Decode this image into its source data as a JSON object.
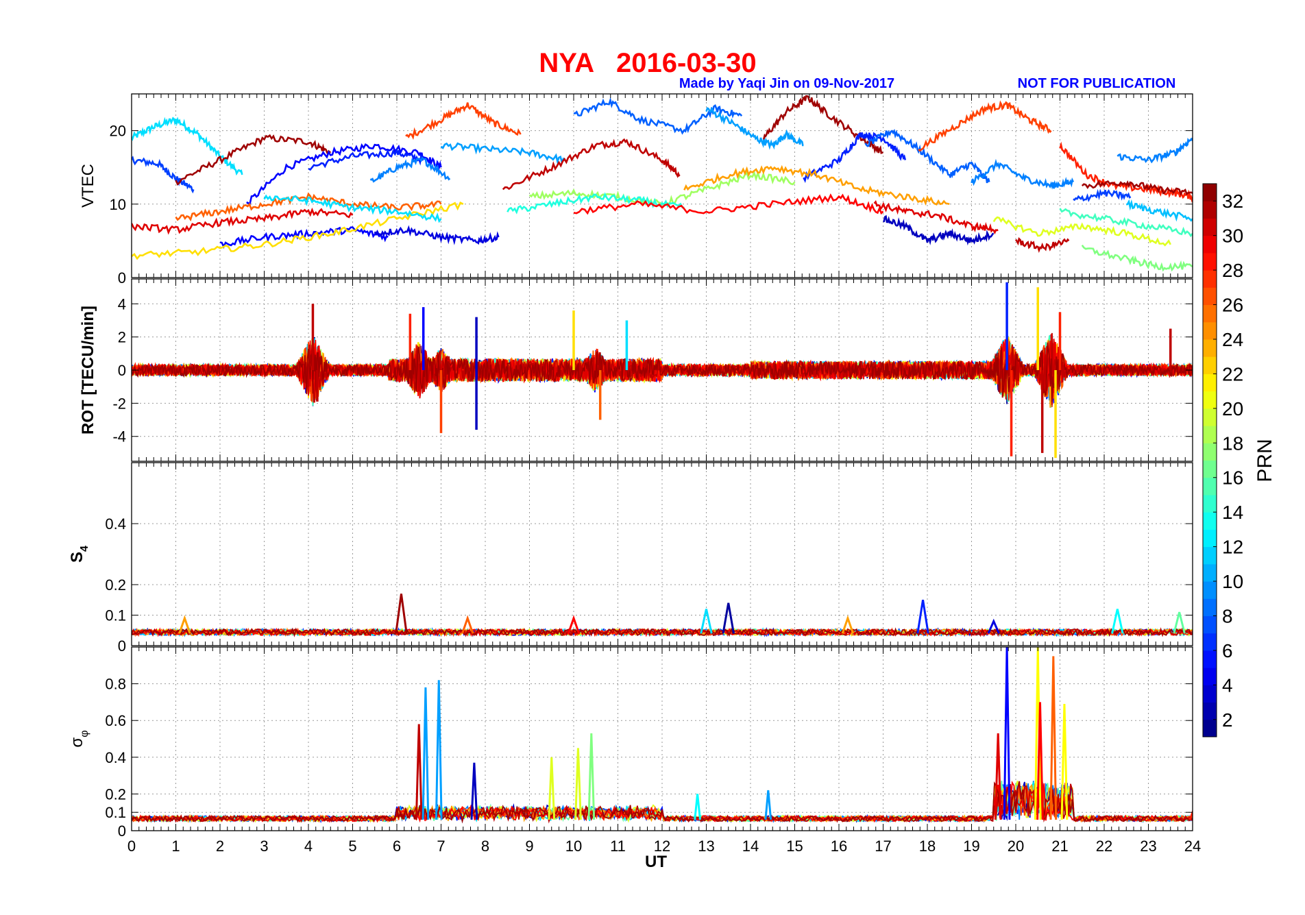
{
  "title": "NYA   2016-03-30",
  "credit": "Made by Yaqi Jin on 09-Nov-2017",
  "notice": "NOT FOR PUBLICATION",
  "xlabel": "UT",
  "colors": {
    "title": "#ff0000",
    "credit": "#0000ff"
  },
  "chart_data": [
    {
      "type": "line",
      "panel": "vtec",
      "ylabel": "VTEC",
      "xlim": [
        0,
        24
      ],
      "ylim": [
        0,
        25
      ],
      "yticks": [
        0,
        10,
        20
      ],
      "grid": true,
      "series": [
        {
          "prn": 12,
          "x": [
            0,
            0.5,
            1.0,
            1.5,
            2.0,
            2.5
          ],
          "y": [
            19,
            20.5,
            21.5,
            19.5,
            16.5,
            14
          ]
        },
        {
          "prn": 7,
          "x": [
            0,
            0.6,
            1.0,
            1.4
          ],
          "y": [
            16,
            15.5,
            13.5,
            12
          ]
        },
        {
          "prn": 32,
          "x": [
            1.0,
            2.0,
            3.0,
            4.0,
            4.5
          ],
          "y": [
            13,
            16,
            19,
            18.5,
            17
          ]
        },
        {
          "prn": 5,
          "x": [
            2.6,
            3.5,
            4.5,
            5.5,
            6.5,
            7.0
          ],
          "y": [
            10,
            15,
            17,
            18,
            17,
            15
          ]
        },
        {
          "prn": 6,
          "x": [
            4.0,
            5.0,
            6.0,
            6.6
          ],
          "y": [
            15,
            16.5,
            17,
            16
          ]
        },
        {
          "prn": 27,
          "x": [
            6.2,
            7.0,
            7.6,
            8.2,
            8.8
          ],
          "y": [
            19,
            21.5,
            23.5,
            21,
            19.5
          ]
        },
        {
          "prn": 10,
          "x": [
            7.0,
            8.0,
            9.0,
            9.8
          ],
          "y": [
            18,
            17.5,
            17,
            16
          ]
        },
        {
          "prn": 9,
          "x": [
            5.4,
            6.0,
            6.6,
            7.2
          ],
          "y": [
            13,
            15,
            16,
            13.5
          ]
        },
        {
          "prn": 31,
          "x": [
            8.4,
            9.5,
            10.5,
            11.2,
            12.0,
            12.4
          ],
          "y": [
            12,
            15,
            18,
            18.5,
            16,
            14
          ]
        },
        {
          "prn": 8,
          "x": [
            10.0,
            10.8,
            11.5,
            12.5,
            13.2,
            13.8
          ],
          "y": [
            22,
            24,
            21.5,
            20,
            23,
            22
          ]
        },
        {
          "prn": 10,
          "x": [
            13.0,
            13.6,
            14.1,
            14.5,
            14.8,
            15.2
          ],
          "y": [
            23,
            21,
            19,
            18,
            19.5,
            18
          ]
        },
        {
          "prn": 32,
          "x": [
            14.3,
            14.8,
            15.3,
            15.8,
            16.5,
            17.0
          ],
          "y": [
            19,
            22.5,
            24.5,
            22,
            19,
            17
          ]
        },
        {
          "prn": 6,
          "x": [
            15.2,
            16.0,
            16.5,
            17.0,
            17.5
          ],
          "y": [
            13.5,
            16,
            19.5,
            19,
            16
          ]
        },
        {
          "prn": 8,
          "x": [
            16.6,
            17.2,
            17.8,
            18.5,
            19.0,
            19.4
          ],
          "y": [
            18,
            20,
            17.5,
            14,
            15.5,
            13
          ]
        },
        {
          "prn": 9,
          "x": [
            19.0,
            19.6,
            20.2,
            20.8,
            21.3
          ],
          "y": [
            13,
            15.5,
            13.5,
            12.5,
            13
          ]
        },
        {
          "prn": 27,
          "x": [
            17.8,
            18.6,
            19.3,
            19.8,
            20.3,
            20.8
          ],
          "y": [
            17.5,
            20.5,
            23,
            23.5,
            21.5,
            20
          ]
        },
        {
          "prn": 28,
          "x": [
            21.0,
            21.6,
            22.2,
            23.0,
            23.6,
            24
          ],
          "y": [
            18,
            14,
            12.5,
            12,
            11.5,
            11
          ]
        },
        {
          "prn": 32,
          "x": [
            21.5,
            22.5,
            23.2,
            24
          ],
          "y": [
            12.5,
            13,
            12,
            11.5
          ]
        },
        {
          "prn": 9,
          "x": [
            22.3,
            23.0,
            23.6,
            24
          ],
          "y": [
            16.5,
            16,
            17,
            19
          ]
        },
        {
          "prn": 5,
          "x": [
            2.0,
            3.0,
            4.0,
            5.0,
            5.8
          ],
          "y": [
            4.5,
            5.5,
            6,
            6.5,
            5.5
          ]
        },
        {
          "prn": 4,
          "x": [
            5.5,
            6.2,
            7.0,
            7.8,
            8.3
          ],
          "y": [
            6,
            6.5,
            5.5,
            5,
            5.5
          ]
        },
        {
          "prn": 22,
          "x": [
            0,
            1.5,
            3.0,
            4.5,
            6.0,
            7.5
          ],
          "y": [
            3,
            3.5,
            4.5,
            6,
            8,
            10
          ]
        },
        {
          "prn": 18,
          "x": [
            9.0,
            10.0,
            11.0,
            12.0,
            13.0,
            14.0,
            15.0
          ],
          "y": [
            11,
            11.5,
            11,
            10,
            12,
            14,
            13
          ]
        },
        {
          "prn": 14,
          "x": [
            8.5,
            9.5,
            10.5,
            11.5,
            12.5
          ],
          "y": [
            9,
            10,
            11,
            10.5,
            9.5
          ]
        },
        {
          "prn": 26,
          "x": [
            1.0,
            2.0,
            3.0,
            4.0,
            5.0,
            6.0,
            7.0
          ],
          "y": [
            8,
            9,
            10,
            11,
            10,
            9.5,
            10
          ]
        },
        {
          "prn": 12,
          "x": [
            3.0,
            4.0,
            5.0,
            6.0,
            7.0
          ],
          "y": [
            11,
            10.5,
            9.5,
            9,
            8
          ]
        },
        {
          "prn": 30,
          "x": [
            0,
            1.0,
            2.0,
            3.0,
            4.0,
            5.0
          ],
          "y": [
            7,
            6.5,
            7.5,
            8,
            9,
            8.5
          ]
        },
        {
          "prn": 24,
          "x": [
            12.5,
            13.5,
            14.5,
            15.5,
            16.5,
            17.5,
            18.5
          ],
          "y": [
            12,
            14,
            15,
            14,
            12,
            11,
            10
          ]
        },
        {
          "prn": 29,
          "x": [
            10.0,
            11.5,
            13.0,
            14.5,
            16.0,
            17.0
          ],
          "y": [
            9,
            10,
            9,
            10,
            11,
            9
          ]
        },
        {
          "prn": 3,
          "x": [
            17.0,
            17.5,
            18.0,
            18.5,
            19.0,
            19.5
          ],
          "y": [
            8,
            7,
            5,
            6,
            5,
            6
          ]
        },
        {
          "prn": 30,
          "x": [
            16.8,
            17.5,
            18.2,
            19.0,
            19.6
          ],
          "y": [
            10,
            9,
            8.5,
            7,
            6.5
          ]
        },
        {
          "prn": 20,
          "x": [
            19.5,
            20.5,
            21.5,
            22.5,
            23.5
          ],
          "y": [
            8,
            6,
            7,
            6,
            4.5
          ]
        },
        {
          "prn": 17,
          "x": [
            21.5,
            22.5,
            23.2,
            24
          ],
          "y": [
            4,
            2.5,
            1.5,
            1.5
          ]
        },
        {
          "prn": 15,
          "x": [
            21.0,
            22.0,
            23.0,
            24
          ],
          "y": [
            9,
            8,
            7,
            6
          ]
        },
        {
          "prn": 11,
          "x": [
            22.5,
            23.2,
            24
          ],
          "y": [
            10,
            9,
            8
          ]
        },
        {
          "prn": 31,
          "x": [
            20.0,
            20.6,
            21.2
          ],
          "y": [
            5,
            4,
            5
          ]
        },
        {
          "prn": 7,
          "x": [
            21.3,
            22.0,
            22.6
          ],
          "y": [
            10.5,
            11.5,
            11
          ]
        }
      ]
    },
    {
      "type": "line",
      "panel": "rot",
      "ylabel": "ROT [TECU/min]",
      "xlim": [
        0,
        24
      ],
      "ylim": [
        -5.5,
        5.5
      ],
      "yticks": [
        -4,
        -2,
        0,
        2,
        4
      ],
      "grid": true,
      "description_of_extremes": "noise around 0 with bursts near 4, 6-7, 10-11, 19.5-21 UT",
      "spikes": [
        {
          "x": 4.1,
          "y": 4.0,
          "prn": 31
        },
        {
          "x": 4.2,
          "y": -1.9,
          "prn": 31
        },
        {
          "x": 6.3,
          "y": 3.4,
          "prn": 28
        },
        {
          "x": 6.6,
          "y": 3.8,
          "prn": 5
        },
        {
          "x": 7.0,
          "y": -3.8,
          "prn": 27
        },
        {
          "x": 7.8,
          "y": 3.2,
          "prn": 3
        },
        {
          "x": 7.8,
          "y": -3.6,
          "prn": 3
        },
        {
          "x": 10.0,
          "y": 3.6,
          "prn": 22
        },
        {
          "x": 10.6,
          "y": -3.0,
          "prn": 26
        },
        {
          "x": 11.2,
          "y": 3.0,
          "prn": 12
        },
        {
          "x": 19.8,
          "y": 5.3,
          "prn": 6
        },
        {
          "x": 19.9,
          "y": -5.2,
          "prn": 28
        },
        {
          "x": 20.5,
          "y": 5.0,
          "prn": 22
        },
        {
          "x": 20.6,
          "y": -5.0,
          "prn": 31
        },
        {
          "x": 20.9,
          "y": -5.3,
          "prn": 22
        },
        {
          "x": 21.0,
          "y": 3.5,
          "prn": 28
        },
        {
          "x": 23.5,
          "y": 2.5,
          "prn": 31
        }
      ]
    },
    {
      "type": "line",
      "panel": "s4",
      "ylabel": "S4",
      "xlim": [
        0,
        24
      ],
      "ylim": [
        0,
        0.6
      ],
      "yticks": [
        0,
        0.1,
        0.2,
        0.4
      ],
      "grid": true,
      "peaks": [
        {
          "x": 6.1,
          "y": 0.17,
          "prn": 32
        },
        {
          "x": 13.5,
          "y": 0.14,
          "prn": 2
        },
        {
          "x": 13.0,
          "y": 0.12,
          "prn": 12
        },
        {
          "x": 17.9,
          "y": 0.15,
          "prn": 6
        },
        {
          "x": 22.3,
          "y": 0.12,
          "prn": 13
        },
        {
          "x": 23.7,
          "y": 0.11,
          "prn": 16
        },
        {
          "x": 1.2,
          "y": 0.09,
          "prn": 24
        },
        {
          "x": 7.6,
          "y": 0.09,
          "prn": 26
        },
        {
          "x": 10.0,
          "y": 0.09,
          "prn": 29
        },
        {
          "x": 16.2,
          "y": 0.09,
          "prn": 24
        },
        {
          "x": 19.5,
          "y": 0.08,
          "prn": 4
        }
      ]
    },
    {
      "type": "line",
      "panel": "sigma_phi",
      "ylabel": "σφ",
      "xlim": [
        0,
        24
      ],
      "ylim": [
        0,
        1.0
      ],
      "yticks": [
        0,
        0.1,
        0.2,
        0.4,
        0.6,
        0.8
      ],
      "xticks": [
        0,
        1,
        2,
        3,
        4,
        5,
        6,
        7,
        8,
        9,
        10,
        11,
        12,
        13,
        14,
        15,
        16,
        17,
        18,
        19,
        20,
        21,
        22,
        23,
        24
      ],
      "grid": true,
      "peaks": [
        {
          "x": 6.5,
          "y": 0.58,
          "prn": 31
        },
        {
          "x": 6.65,
          "y": 0.78,
          "prn": 10
        },
        {
          "x": 6.95,
          "y": 0.82,
          "prn": 10
        },
        {
          "x": 7.75,
          "y": 0.37,
          "prn": 3
        },
        {
          "x": 9.5,
          "y": 0.4,
          "prn": 20
        },
        {
          "x": 10.1,
          "y": 0.45,
          "prn": 20
        },
        {
          "x": 10.4,
          "y": 0.53,
          "prn": 17
        },
        {
          "x": 12.8,
          "y": 0.2,
          "prn": 13
        },
        {
          "x": 14.4,
          "y": 0.22,
          "prn": 10
        },
        {
          "x": 19.6,
          "y": 0.53,
          "prn": 30
        },
        {
          "x": 19.8,
          "y": 1.0,
          "prn": 5
        },
        {
          "x": 20.5,
          "y": 1.0,
          "prn": 21
        },
        {
          "x": 20.55,
          "y": 0.7,
          "prn": 29
        },
        {
          "x": 20.85,
          "y": 0.95,
          "prn": 26
        },
        {
          "x": 21.1,
          "y": 0.69,
          "prn": 21
        },
        {
          "x": 24.0,
          "y": 0.1,
          "prn": 28
        }
      ]
    }
  ],
  "colorbar": {
    "label": "PRN",
    "range": [
      1,
      33
    ],
    "ticks": [
      2,
      4,
      6,
      8,
      10,
      12,
      14,
      16,
      18,
      20,
      22,
      24,
      26,
      28,
      30,
      32
    ]
  }
}
